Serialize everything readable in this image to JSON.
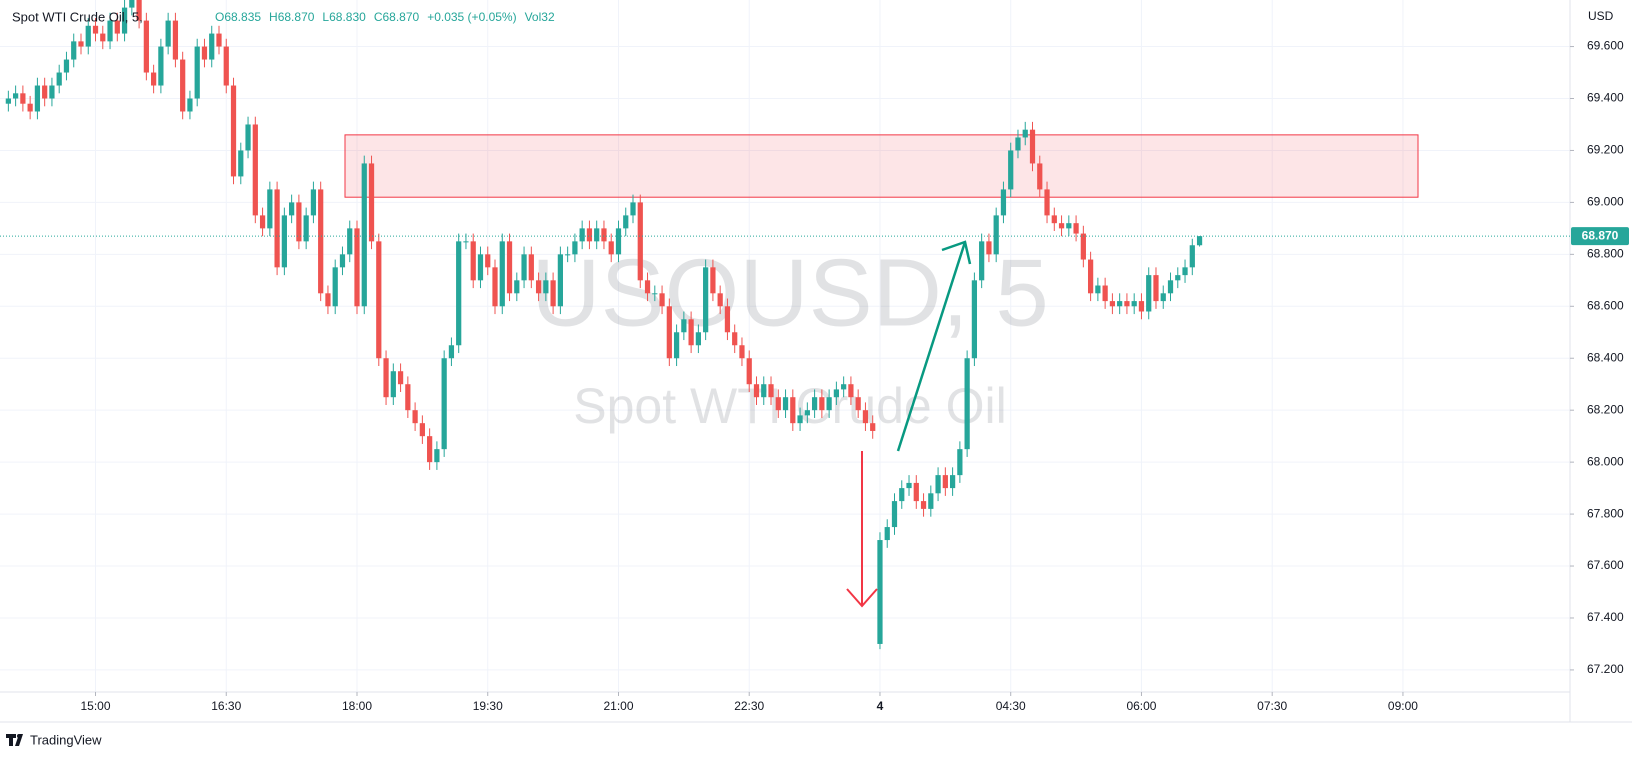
{
  "chart_data": {
    "type": "candlestick",
    "title": "Spot WTI Crude Oil, 5,",
    "legend": [
      "O68.835",
      "H68.870",
      "L68.830",
      "C68.870",
      "+0.035 (+0.05%)",
      "Vol32"
    ],
    "watermark": [
      "USOUSD, 5",
      "Spot WTI Crude Oil"
    ],
    "currency": "USD",
    "brand": "TradingView",
    "up_color": "#26a69a",
    "down_color": "#ef5350",
    "grid": true,
    "open": [
      69.38,
      69.4,
      69.42,
      69.38,
      69.35,
      69.45,
      69.4,
      69.45,
      69.5,
      69.55,
      69.62,
      69.6,
      69.68,
      69.65,
      69.62,
      69.7,
      69.65,
      69.75,
      69.8,
      69.7,
      69.5,
      69.45,
      69.6,
      69.7,
      69.55,
      69.35,
      69.4,
      69.6,
      69.55,
      69.65,
      69.6,
      69.45,
      69.1,
      69.2,
      69.3,
      68.95,
      68.9,
      69.05,
      68.75,
      68.95,
      69.0,
      68.85,
      68.95,
      69.05,
      68.65,
      68.6,
      68.75,
      68.8,
      68.9,
      68.6,
      69.15,
      68.85,
      68.4,
      68.25,
      68.35,
      68.3,
      68.2,
      68.15,
      68.1,
      68.0,
      68.05,
      68.4,
      68.45,
      68.85,
      68.85,
      68.7,
      68.8,
      68.75,
      68.6,
      68.85,
      68.65,
      68.7,
      68.8,
      68.7,
      68.65,
      68.7,
      68.6,
      68.8,
      68.8,
      68.85,
      68.9,
      68.85,
      68.9,
      68.85,
      68.8,
      68.9,
      68.95,
      69.0,
      68.7,
      68.65,
      68.65,
      68.6,
      68.4,
      68.5,
      68.55,
      68.45,
      68.5,
      68.75,
      68.65,
      68.6,
      68.5,
      68.45,
      68.4,
      68.3,
      68.25,
      68.3,
      68.25,
      68.2,
      68.25,
      68.15,
      68.18,
      68.2,
      68.25,
      68.2,
      68.25,
      68.28,
      68.3,
      68.25,
      68.2,
      68.15,
      67.3,
      67.7,
      67.75,
      67.85,
      67.9,
      67.92,
      67.85,
      67.82,
      67.88,
      67.95,
      67.9,
      67.95,
      68.05,
      68.4,
      68.7,
      68.85,
      68.8,
      68.95,
      69.05,
      69.2,
      69.25,
      69.28,
      69.15,
      69.05,
      68.95,
      68.92,
      68.9,
      68.92,
      68.88,
      68.78,
      68.65,
      68.68,
      68.62,
      68.6,
      68.62,
      68.6,
      68.62,
      68.58,
      68.72,
      68.62,
      68.65,
      68.7,
      68.72,
      68.75,
      68.835
    ],
    "high": [
      69.43,
      69.45,
      69.45,
      69.41,
      69.48,
      69.48,
      69.48,
      69.53,
      69.58,
      69.65,
      69.65,
      69.71,
      69.71,
      69.68,
      69.73,
      69.73,
      69.78,
      69.83,
      69.83,
      69.73,
      69.53,
      69.63,
      69.73,
      69.73,
      69.58,
      69.43,
      69.63,
      69.63,
      69.68,
      69.68,
      69.63,
      69.48,
      69.23,
      69.33,
      69.33,
      68.98,
      69.08,
      69.08,
      68.98,
      69.03,
      69.03,
      68.98,
      69.08,
      69.08,
      68.68,
      68.78,
      68.83,
      68.93,
      68.93,
      69.18,
      69.18,
      68.88,
      68.43,
      68.38,
      68.38,
      68.33,
      68.23,
      68.18,
      68.13,
      68.08,
      68.43,
      68.48,
      68.88,
      68.88,
      68.88,
      68.83,
      68.83,
      68.78,
      68.88,
      68.88,
      68.73,
      68.83,
      68.83,
      68.73,
      68.73,
      68.73,
      68.83,
      68.83,
      68.88,
      68.93,
      68.93,
      68.93,
      68.93,
      68.88,
      68.93,
      68.98,
      69.03,
      69.03,
      68.73,
      68.68,
      68.68,
      68.63,
      68.53,
      68.58,
      68.58,
      68.53,
      68.78,
      68.78,
      68.68,
      68.63,
      68.53,
      68.48,
      68.43,
      68.33,
      68.33,
      68.33,
      68.28,
      68.28,
      68.28,
      68.21,
      68.23,
      68.28,
      68.28,
      68.28,
      68.31,
      68.33,
      68.33,
      68.28,
      68.23,
      68.18,
      67.73,
      67.78,
      67.88,
      67.93,
      67.95,
      67.95,
      67.88,
      67.91,
      67.98,
      67.98,
      67.98,
      68.08,
      68.43,
      68.73,
      68.88,
      68.88,
      68.98,
      69.08,
      69.23,
      69.28,
      69.31,
      69.31,
      69.18,
      69.08,
      68.98,
      68.95,
      68.95,
      68.95,
      68.91,
      68.81,
      68.71,
      68.71,
      68.65,
      68.65,
      68.65,
      68.65,
      68.65,
      68.75,
      68.75,
      68.68,
      68.73,
      68.75,
      68.78,
      68.86,
      68.87
    ],
    "low": [
      69.35,
      69.37,
      69.35,
      69.32,
      69.32,
      69.37,
      69.37,
      69.42,
      69.47,
      69.52,
      69.57,
      69.57,
      69.62,
      69.59,
      69.59,
      69.62,
      69.62,
      69.72,
      69.67,
      69.47,
      69.42,
      69.42,
      69.57,
      69.52,
      69.32,
      69.32,
      69.37,
      69.52,
      69.52,
      69.57,
      69.42,
      69.07,
      69.07,
      69.17,
      68.92,
      68.87,
      68.87,
      68.72,
      68.72,
      68.92,
      68.82,
      68.82,
      68.92,
      68.62,
      68.57,
      68.57,
      68.72,
      68.77,
      68.57,
      68.57,
      68.82,
      68.37,
      68.22,
      68.22,
      68.27,
      68.17,
      68.12,
      68.07,
      67.97,
      67.97,
      68.02,
      68.37,
      68.42,
      68.82,
      68.67,
      68.67,
      68.72,
      68.57,
      68.57,
      68.62,
      68.62,
      68.67,
      68.67,
      68.62,
      68.62,
      68.57,
      68.57,
      68.77,
      68.77,
      68.82,
      68.82,
      68.82,
      68.82,
      68.77,
      68.77,
      68.87,
      68.92,
      68.67,
      68.62,
      68.62,
      68.57,
      68.37,
      68.37,
      68.47,
      68.42,
      68.42,
      68.47,
      68.62,
      68.57,
      68.47,
      68.42,
      68.37,
      68.27,
      68.22,
      68.22,
      68.22,
      68.17,
      68.17,
      68.12,
      68.12,
      68.15,
      68.17,
      68.17,
      68.17,
      68.22,
      68.25,
      68.22,
      68.17,
      68.12,
      68.09,
      67.28,
      67.67,
      67.72,
      67.82,
      67.87,
      67.82,
      67.79,
      67.79,
      67.85,
      67.87,
      67.87,
      67.92,
      68.02,
      68.37,
      68.67,
      68.77,
      68.77,
      68.92,
      69.02,
      69.17,
      69.22,
      69.12,
      69.02,
      68.92,
      68.89,
      68.87,
      68.87,
      68.85,
      68.75,
      68.62,
      68.62,
      68.59,
      68.57,
      68.57,
      68.57,
      68.57,
      68.55,
      68.55,
      68.59,
      68.59,
      68.62,
      68.67,
      68.69,
      68.72,
      68.83
    ],
    "close": [
      69.4,
      69.42,
      69.38,
      69.35,
      69.45,
      69.4,
      69.45,
      69.5,
      69.55,
      69.62,
      69.6,
      69.68,
      69.65,
      69.62,
      69.7,
      69.65,
      69.75,
      69.8,
      69.7,
      69.5,
      69.45,
      69.6,
      69.7,
      69.55,
      69.35,
      69.4,
      69.6,
      69.55,
      69.65,
      69.6,
      69.45,
      69.1,
      69.2,
      69.3,
      68.95,
      68.9,
      69.05,
      68.75,
      68.95,
      69.0,
      68.85,
      68.95,
      69.05,
      68.65,
      68.6,
      68.75,
      68.8,
      68.9,
      68.6,
      69.15,
      68.85,
      68.4,
      68.25,
      68.35,
      68.3,
      68.2,
      68.15,
      68.1,
      68.0,
      68.05,
      68.4,
      68.45,
      68.85,
      68.85,
      68.7,
      68.8,
      68.75,
      68.6,
      68.85,
      68.65,
      68.7,
      68.8,
      68.7,
      68.65,
      68.7,
      68.6,
      68.8,
      68.8,
      68.85,
      68.9,
      68.85,
      68.9,
      68.85,
      68.8,
      68.9,
      68.95,
      69.0,
      68.7,
      68.65,
      68.65,
      68.6,
      68.4,
      68.5,
      68.55,
      68.45,
      68.5,
      68.75,
      68.65,
      68.6,
      68.5,
      68.45,
      68.4,
      68.3,
      68.25,
      68.3,
      68.25,
      68.2,
      68.25,
      68.15,
      68.18,
      68.2,
      68.25,
      68.2,
      68.25,
      68.28,
      68.3,
      68.25,
      68.2,
      68.15,
      68.12,
      67.7,
      67.75,
      67.85,
      67.9,
      67.92,
      67.85,
      67.82,
      67.88,
      67.95,
      67.9,
      67.95,
      68.05,
      68.4,
      68.7,
      68.85,
      68.8,
      68.95,
      69.05,
      69.2,
      69.25,
      69.28,
      69.15,
      69.05,
      68.95,
      68.92,
      68.9,
      68.92,
      68.88,
      68.78,
      68.65,
      68.68,
      68.62,
      68.6,
      68.62,
      68.6,
      68.62,
      68.58,
      68.72,
      68.62,
      68.65,
      68.7,
      68.72,
      68.75,
      68.835,
      68.87
    ],
    "ylim": [
      67.115,
      69.76
    ],
    "yticks": [
      {
        "value": 67.2,
        "label": "67.200"
      },
      {
        "value": 67.4,
        "label": "67.400"
      },
      {
        "value": 67.6,
        "label": "67.600"
      },
      {
        "value": 67.8,
        "label": "67.800"
      },
      {
        "value": 68.0,
        "label": "68.000"
      },
      {
        "value": 68.2,
        "label": "68.200"
      },
      {
        "value": 68.4,
        "label": "68.400"
      },
      {
        "value": 68.6,
        "label": "68.600"
      },
      {
        "value": 68.8,
        "label": "68.800"
      },
      {
        "value": 69.0,
        "label": "69.000"
      },
      {
        "value": 69.2,
        "label": "69.200"
      },
      {
        "value": 69.4,
        "label": "69.400"
      },
      {
        "value": 69.6,
        "label": "69.600"
      }
    ],
    "xlim": [
      -1.15,
      215
    ],
    "xticks": [
      {
        "value": 12,
        "label": "15:00"
      },
      {
        "value": 30,
        "label": "16:30"
      },
      {
        "value": 48,
        "label": "18:00"
      },
      {
        "value": 66,
        "label": "19:30"
      },
      {
        "value": 84,
        "label": "21:00"
      },
      {
        "value": 102,
        "label": "22:30"
      },
      {
        "value": 120,
        "label": "4"
      },
      {
        "value": 138,
        "label": "04:30"
      },
      {
        "value": 156,
        "label": "06:00"
      },
      {
        "value": 174,
        "label": "07:30"
      },
      {
        "value": 192,
        "label": "09:00"
      }
    ],
    "last_price": {
      "value": 68.87,
      "label": "68.870"
    },
    "zone": {
      "from": 69.02,
      "to": 69.26
    }
  }
}
